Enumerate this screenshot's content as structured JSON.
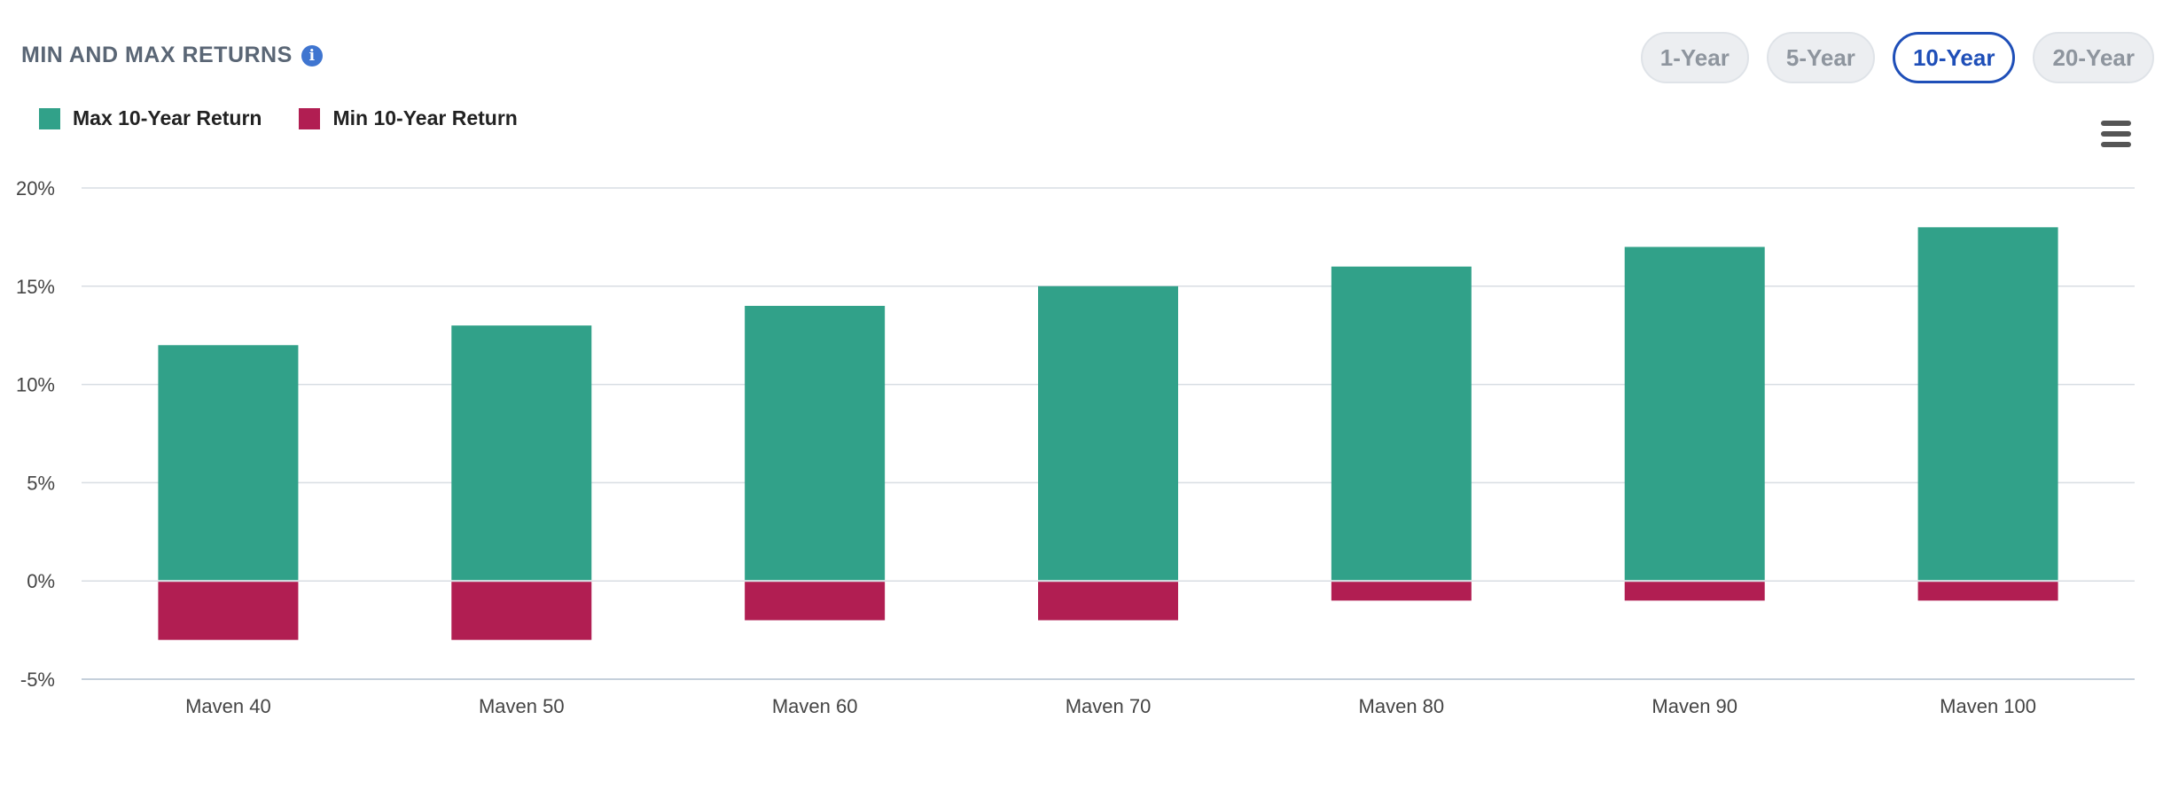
{
  "title": "MIN AND MAX RETURNS",
  "info_icon": "info-icon",
  "periods": [
    {
      "label": "1-Year",
      "active": false
    },
    {
      "label": "5-Year",
      "active": false
    },
    {
      "label": "10-Year",
      "active": true
    },
    {
      "label": "20-Year",
      "active": false
    }
  ],
  "menu_icon": "hamburger-menu-icon",
  "colors": {
    "max": "#31a189",
    "min": "#b11e52",
    "grid": "#d8dde3",
    "axis": "#c5d0db"
  },
  "chart_data": {
    "type": "bar",
    "categories": [
      "Maven 40",
      "Maven 50",
      "Maven 60",
      "Maven 70",
      "Maven 80",
      "Maven 90",
      "Maven 100"
    ],
    "series": [
      {
        "name": "Max 10-Year Return",
        "values": [
          12,
          13,
          14,
          15,
          16,
          17,
          18
        ]
      },
      {
        "name": "Min 10-Year Return",
        "values": [
          -3,
          -3,
          -2,
          -2,
          -1,
          -1,
          -1
        ]
      }
    ],
    "ylim": [
      -5,
      20
    ],
    "yticks": [
      20,
      15,
      10,
      5,
      0,
      -5
    ],
    "ytick_labels": [
      "20%",
      "15%",
      "10%",
      "5%",
      "0%",
      "-5%"
    ],
    "grid": true,
    "legend": "top-left"
  }
}
